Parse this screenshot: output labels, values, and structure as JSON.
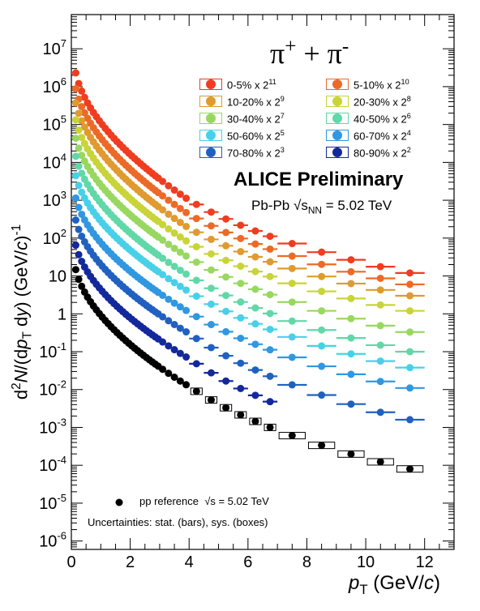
{
  "figure": {
    "title": "π+ + π-",
    "title_sup_plus": "+",
    "title_sup_minus": "-",
    "experiment": "ALICE Preliminary",
    "system": "Pb-Pb",
    "energy_label_sym": "√s",
    "energy_label_sub": "NN",
    "energy_label_val": "= 5.02 TeV",
    "pp_label": "pp reference",
    "pp_energy": "√s = 5.02 TeV",
    "uncertainties_note": "Uncertainties: stat. (bars), sys. (boxes)",
    "ylabel": "d²N/(dp_T dy) (GeV/c)^-1",
    "xlabel": "p_T (GeV/c)"
  },
  "chart_data": {
    "type": "scatter",
    "xlim": [
      0,
      13
    ],
    "ylim": [
      6e-07,
      80000000.0
    ],
    "yscale": "log",
    "xticks": [
      "0",
      "2",
      "4",
      "6",
      "8",
      "10",
      "12"
    ],
    "yticks": [
      {
        "base": "10",
        "exp": "-6"
      },
      {
        "base": "10",
        "exp": "-5"
      },
      {
        "base": "10",
        "exp": "-4"
      },
      {
        "base": "10",
        "exp": "-3"
      },
      {
        "base": "10",
        "exp": "-2"
      },
      {
        "base": "10",
        "exp": "-1"
      },
      {
        "base": "1",
        "exp": ""
      },
      {
        "base": "10",
        "exp": ""
      },
      {
        "base": "10",
        "exp": "2"
      },
      {
        "base": "10",
        "exp": "3"
      },
      {
        "base": "10",
        "exp": "4"
      },
      {
        "base": "10",
        "exp": "5"
      },
      {
        "base": "10",
        "exp": "6"
      },
      {
        "base": "10",
        "exp": "7"
      }
    ],
    "series": [
      {
        "name": "0-5% x 2^11",
        "label": "0-5% x 2",
        "exp": "11",
        "color": "#f03c20",
        "y_at_0.1": 5000000.0,
        "y_at_4": 1000.0,
        "y_at_11.5": 12
      },
      {
        "name": "5-10% x 2^10",
        "label": "5-10% x 2",
        "exp": "10",
        "color": "#ec6a28",
        "y_at_0.1": 1900000.0,
        "y_at_4": 420.0,
        "y_at_11.5": 6
      },
      {
        "name": "10-20% x 2^9",
        "label": "10-20% x 2",
        "exp": "9",
        "color": "#e09a30",
        "y_at_0.1": 800000.0,
        "y_at_4": 180.0,
        "y_at_11.5": 3
      },
      {
        "name": "20-30% x 2^8",
        "label": "20-30% x 2",
        "exp": "8",
        "color": "#c8d438",
        "y_at_0.1": 280000.0,
        "y_at_4": 75,
        "y_at_11.5": 1.2
      },
      {
        "name": "30-40% x 2^7",
        "label": "30-40% x 2",
        "exp": "7",
        "color": "#98d860",
        "y_at_0.1": 90000.0,
        "y_at_4": 30,
        "y_at_11.5": 0.33
      },
      {
        "name": "40-50% x 2^6",
        "label": "40-50% x 2",
        "exp": "6",
        "color": "#60d8a8",
        "y_at_0.1": 30000.0,
        "y_at_4": 10,
        "y_at_11.5": 0.1
      },
      {
        "name": "50-60% x 2^5",
        "label": "50-60% x 2",
        "exp": "5",
        "color": "#48d0e8",
        "y_at_0.1": 9000.0,
        "y_at_4": 3.8,
        "y_at_11.5": 0.038
      },
      {
        "name": "60-70% x 2^4",
        "label": "60-70% x 2",
        "exp": "4",
        "color": "#3098e0",
        "y_at_0.1": 2300.0,
        "y_at_4": 1.1,
        "y_at_11.5": 0.011
      },
      {
        "name": "70-80% x 2^3",
        "label": "70-80% x 2",
        "exp": "3",
        "color": "#2060c0",
        "y_at_0.1": 600.0,
        "y_at_4": 0.3,
        "y_at_11.5": 0.0016
      },
      {
        "name": "80-90% x 2^2",
        "label": "80-90% x 2",
        "exp": "2",
        "color": "#14289c",
        "y_at_0.1": 130.0,
        "y_at_4": 0.065,
        "y_at_7": 0.004
      },
      {
        "name": "pp reference",
        "label": "pp reference",
        "exp": "",
        "color": "#000000",
        "y_at_0.1": 30,
        "y_at_4": 0.012,
        "y_at_11.5": 8e-05
      }
    ]
  }
}
